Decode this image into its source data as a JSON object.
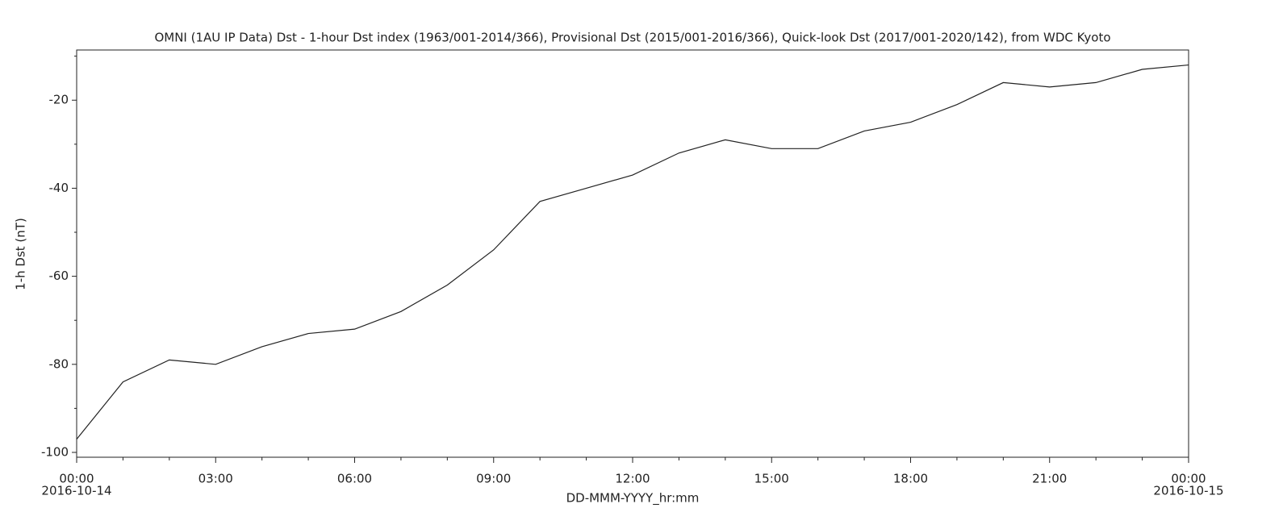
{
  "chart_data": {
    "type": "line",
    "title": "OMNI (1AU IP Data)  Dst - 1-hour Dst index (1963/001-2014/366), Provisional Dst (2015/001-2016/366), Quick-look Dst (2017/001-2020/142), from WDC Kyoto",
    "x_label": "DD-MMM-YYYY_hr:mm",
    "y_label": "1-h Dst (nT)",
    "x": [
      0,
      1,
      2,
      3,
      4,
      5,
      6,
      7,
      8,
      9,
      10,
      11,
      12,
      13,
      14,
      15,
      16,
      17,
      18,
      19,
      20,
      21,
      22,
      23,
      24
    ],
    "series": [
      {
        "name": "Dst",
        "color": "#222222",
        "values": [
          -97,
          -84,
          -79,
          -80,
          -76,
          -73,
          -72,
          -68,
          -62,
          -54,
          -43,
          -40,
          -37,
          -32,
          -29,
          -31,
          -31,
          -27,
          -25,
          -21,
          -16,
          -17,
          -16,
          -13,
          -12
        ]
      }
    ],
    "xlim": [
      0,
      24
    ],
    "xticks": [
      {
        "value": 0,
        "label": "00:00"
      },
      {
        "value": 3,
        "label": "03:00"
      },
      {
        "value": 6,
        "label": "06:00"
      },
      {
        "value": 9,
        "label": "09:00"
      },
      {
        "value": 12,
        "label": "12:00"
      },
      {
        "value": 15,
        "label": "15:00"
      },
      {
        "value": 18,
        "label": "18:00"
      },
      {
        "value": 21,
        "label": "21:00"
      },
      {
        "value": 24,
        "label": "00:00"
      }
    ],
    "x_dates": [
      {
        "value": 0,
        "label": "2016-10-14"
      },
      {
        "value": 24,
        "label": "2016-10-15"
      }
    ],
    "xminor_ticks": [
      1,
      2,
      4,
      5,
      7,
      8,
      10,
      11,
      13,
      14,
      16,
      17,
      19,
      20,
      22,
      23
    ],
    "ylim": [
      -101.1,
      -8.6
    ],
    "yticks": [
      -100,
      -80,
      -60,
      -40,
      -20
    ],
    "yminor_ticks": [
      -90,
      -70,
      -50,
      -30,
      -10
    ]
  }
}
